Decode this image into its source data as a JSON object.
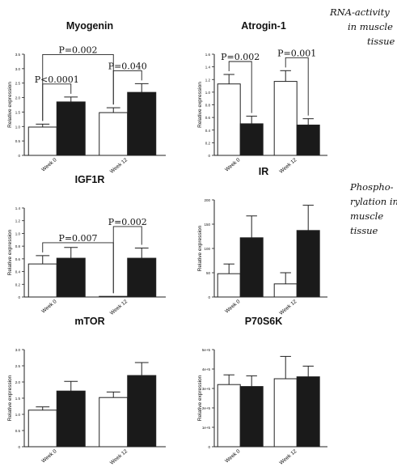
{
  "annotations": {
    "rna": [
      "RNA-activity",
      "in muscle",
      "tissue"
    ],
    "phospho": [
      "Phospho-",
      "rylation in",
      "muscle",
      "tissue"
    ]
  },
  "colors": {
    "open_bar": "#ffffff",
    "filled_bar": "#1a1a1a",
    "axis": "#222222"
  },
  "chart_data": [
    {
      "type": "bar",
      "title": "Myogenin",
      "ylabel": "Relative expression",
      "categories": [
        "Week 0",
        "Week 12"
      ],
      "series": [
        {
          "fill": "open",
          "values": [
            0.98,
            1.48
          ],
          "errors": [
            0.1,
            0.17
          ]
        },
        {
          "fill": "filled",
          "values": [
            1.85,
            2.18
          ],
          "errors": [
            0.17,
            0.3
          ]
        }
      ],
      "ylim": [
        0,
        3.5
      ],
      "yticks": [
        0,
        0.5,
        1.0,
        1.5,
        2.0,
        2.5,
        3.0,
        3.5
      ],
      "ytick_labels": [
        "0",
        "0.5",
        "1.0",
        "1.5",
        "2.0",
        "2.5",
        "3.0",
        "3.5"
      ],
      "brackets": [
        {
          "label": "P<0.0001",
          "from": "Week 0 open",
          "to": "Week 0 filled"
        },
        {
          "label": "P=0.040",
          "from": "Week 12 open",
          "to": "Week 12 filled"
        },
        {
          "label": "P=0.002",
          "from": "Week 0 open",
          "to": "Week 12 open"
        }
      ]
    },
    {
      "type": "bar",
      "title": "Atrogin-1",
      "ylabel": "Relative expression",
      "categories": [
        "Week 0",
        "Week 12"
      ],
      "series": [
        {
          "fill": "open",
          "values": [
            1.13,
            1.17
          ],
          "errors": [
            0.15,
            0.17
          ]
        },
        {
          "fill": "filled",
          "values": [
            0.5,
            0.48
          ],
          "errors": [
            0.12,
            0.1
          ]
        }
      ],
      "ylim": [
        0,
        1.6
      ],
      "yticks": [
        0,
        0.2,
        0.4,
        0.6,
        0.8,
        1.0,
        1.2,
        1.4,
        1.6
      ],
      "ytick_labels": [
        "0",
        "0.2",
        "0.4",
        "0.6",
        "0.8",
        "1.0",
        "1.2",
        "1.4",
        "1.6"
      ],
      "brackets": [
        {
          "label": "P=0.002",
          "from": "Week 0 open",
          "to": "Week 0 filled"
        },
        {
          "label": "P=0.001",
          "from": "Week 12 open",
          "to": "Week 12 filled"
        }
      ]
    },
    {
      "type": "bar",
      "title": "IGF1R",
      "ylabel": "Relative expression",
      "categories": [
        "Week 0",
        "Week 12"
      ],
      "series": [
        {
          "fill": "open",
          "values": [
            0.52,
            0.01
          ],
          "errors": [
            0.13,
            0
          ]
        },
        {
          "fill": "filled",
          "values": [
            0.61,
            0.61
          ],
          "errors": [
            0.17,
            0.16
          ]
        }
      ],
      "ylim": [
        0,
        1.4
      ],
      "yticks": [
        0,
        0.2,
        0.4,
        0.6,
        0.8,
        1.0,
        1.2,
        1.4
      ],
      "ytick_labels": [
        "0",
        "0.2",
        "0.4",
        "0.6",
        "0.8",
        "1.0",
        "1.2",
        "1.4"
      ],
      "brackets": [
        {
          "label": "P=0.007",
          "from": "Week 0 open",
          "to": "Week 12 open"
        },
        {
          "label": "P=0.002",
          "from": "Week 12 open",
          "to": "Week 12 filled"
        }
      ]
    },
    {
      "type": "bar",
      "title": "IR",
      "ylabel": "Relative expression",
      "categories": [
        "Week 0",
        "Week 12"
      ],
      "series": [
        {
          "fill": "open",
          "values": [
            48,
            27
          ],
          "errors": [
            20,
            23
          ]
        },
        {
          "fill": "filled",
          "values": [
            122,
            137
          ],
          "errors": [
            45,
            52
          ]
        }
      ],
      "ylim": [
        0,
        200
      ],
      "yticks": [
        0,
        50,
        100,
        150,
        200
      ],
      "ytick_labels": [
        "0",
        "50",
        "100",
        "150",
        "200"
      ],
      "brackets": []
    },
    {
      "type": "bar",
      "title": "mTOR",
      "ylabel": "Relative expression",
      "categories": [
        "Week 0",
        "Week 12"
      ],
      "series": [
        {
          "fill": "open",
          "values": [
            1.13,
            1.52
          ],
          "errors": [
            0.1,
            0.17
          ]
        },
        {
          "fill": "filled",
          "values": [
            1.72,
            2.2
          ],
          "errors": [
            0.3,
            0.4
          ]
        }
      ],
      "ylim": [
        0,
        3.0
      ],
      "yticks": [
        0,
        0.5,
        1.0,
        1.5,
        2.0,
        2.5,
        3.0
      ],
      "ytick_labels": [
        "0",
        "0.5",
        "1.0",
        "1.5",
        "2.0",
        "2.5",
        "3.0"
      ],
      "brackets": []
    },
    {
      "type": "bar",
      "title": "P70S6K",
      "ylabel": "Relative expression",
      "categories": [
        "Week 0",
        "Week 12"
      ],
      "series": [
        {
          "fill": "open",
          "values": [
            320000,
            350000
          ],
          "errors": [
            50000,
            115000
          ]
        },
        {
          "fill": "filled",
          "values": [
            310000,
            360000
          ],
          "errors": [
            55000,
            55000
          ]
        }
      ],
      "ylim": [
        0,
        500000
      ],
      "yticks": [
        0,
        100000,
        200000,
        300000,
        400000,
        500000
      ],
      "ytick_labels": [
        "0",
        "1e+5",
        "2e+5",
        "3e+5",
        "4e+5",
        "5e+5"
      ],
      "brackets": []
    }
  ]
}
